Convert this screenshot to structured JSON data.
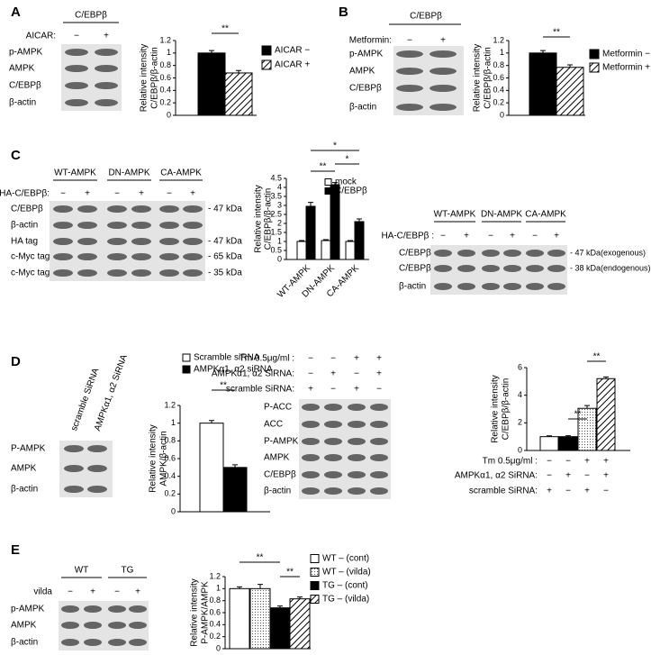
{
  "panel_labels": [
    "A",
    "B",
    "C",
    "D",
    "E"
  ],
  "blots": [
    {
      "header": "C/EBPβ",
      "conditions": [
        {
          "label": "AICAR:",
          "signs": [
            "−",
            "+"
          ]
        }
      ],
      "rows": [
        "p-AMPK",
        "AMPK",
        "C/EBPβ",
        "β-actin"
      ]
    },
    {
      "header": "C/EBPβ",
      "conditions": [
        {
          "label": "Metformin:",
          "signs": [
            "−",
            "+"
          ]
        }
      ],
      "rows": [
        "p-AMPK",
        "AMPK",
        "C/EBPβ",
        "β-actin"
      ]
    },
    {
      "groups": [
        "WT-AMPK",
        "DN-AMPK",
        "CA-AMPK"
      ],
      "conditions": [
        {
          "label": "HA-C/EBPβ:",
          "signs": [
            "−",
            "+",
            "−",
            "+",
            "−",
            "+"
          ]
        }
      ],
      "rows": [
        "C/EBPβ",
        "β-actin",
        "HA tag",
        "c-Myc tag",
        "c-Myc tag"
      ],
      "sizes": [
        "- 47 kDa",
        null,
        "- 47 kDa",
        "- 65 kDa",
        "- 35 kDa"
      ]
    },
    {
      "groups": [
        "WT-AMPK",
        "DN-AMPK",
        "CA-AMPK"
      ],
      "conditions": [
        {
          "label": "HA-C/EBPβ :",
          "signs": [
            "−",
            "+",
            "−",
            "+",
            "−",
            "+"
          ]
        }
      ],
      "rows": [
        "C/EBPβ",
        "C/EBPβ",
        "β-actin"
      ],
      "sizes": [
        "- 47 kDa(exogenous)",
        "- 38 kDa(endogenous)",
        null
      ]
    },
    {
      "lanes": [
        "scramble  SiRNA",
        "AMPKα1, α2  SiRNA"
      ],
      "rows": [
        "P-AMPK",
        "AMPK",
        "β-actin"
      ]
    },
    {
      "conditions": [
        {
          "label": "Tm 0.5μg/ml :",
          "signs": [
            "−",
            "−",
            "+",
            "+"
          ]
        },
        {
          "label": "AMPKα1, α2  SiRNA:",
          "signs": [
            "−",
            "+",
            "−",
            "+"
          ]
        },
        {
          "label": "scramble  SiRNA:",
          "signs": [
            "+",
            "−",
            "+",
            "−"
          ]
        }
      ],
      "rows": [
        "P-ACC",
        "ACC",
        "P-AMPK",
        "AMPK",
        "C/EBPβ",
        "β-actin"
      ]
    },
    {
      "groups": [
        "WT",
        "TG"
      ],
      "conditions": [
        {
          "label": "vilda",
          "signs": [
            "−",
            "+",
            "−",
            "+"
          ]
        }
      ],
      "rows": [
        "p-AMPK",
        "AMPK",
        "β-actin"
      ]
    }
  ],
  "chart_data": [
    {
      "type": "bar",
      "ylabel": [
        "Relative intensity",
        "C/EBPβ/β-actin"
      ],
      "ylim": [
        0,
        1.2
      ],
      "yticks": [
        0,
        0.2,
        0.4,
        0.6,
        0.8,
        1,
        1.2
      ],
      "series": [
        {
          "name": "AICAR −",
          "fill": "black",
          "values": [
            1.0
          ],
          "errors": [
            0.04
          ]
        },
        {
          "name": "AICAR +",
          "fill": "hatch",
          "values": [
            0.68
          ],
          "errors": [
            0.04
          ]
        }
      ],
      "significance": [
        "**"
      ]
    },
    {
      "type": "bar",
      "ylabel": [
        "Relative intensity",
        "C/EBPβ/β-actin"
      ],
      "ylim": [
        0,
        1.2
      ],
      "yticks": [
        0,
        0.2,
        0.4,
        0.6,
        0.8,
        1,
        1.2
      ],
      "series": [
        {
          "name": "Metformin −",
          "fill": "black",
          "values": [
            1.0
          ],
          "errors": [
            0.04
          ]
        },
        {
          "name": "Metformin +",
          "fill": "hatch",
          "values": [
            0.77
          ],
          "errors": [
            0.04
          ]
        }
      ],
      "significance": [
        "**"
      ]
    },
    {
      "type": "bar",
      "ylabel": [
        "Relative intensity",
        "C/EBPβ/β-actin"
      ],
      "ylim": [
        0,
        4.5
      ],
      "yticks": [
        0,
        0.5,
        1,
        1.5,
        2,
        2.5,
        3,
        3.5,
        4,
        4.5
      ],
      "categories": [
        "WT-AMPK",
        "DN-AMPK",
        "CA-AMPK"
      ],
      "series": [
        {
          "name": "mock",
          "fill": "white",
          "values": [
            1.0,
            1.05,
            1.0
          ],
          "errors": [
            0.05,
            0.05,
            0.05
          ]
        },
        {
          "name": "C/EBPβ",
          "fill": "black",
          "values": [
            2.95,
            4.15,
            2.1
          ],
          "errors": [
            0.22,
            0.12,
            0.15
          ]
        }
      ],
      "significance": [
        "**",
        "*",
        "*"
      ]
    },
    {
      "type": "bar",
      "ylabel": [
        "Relative intensity",
        "AMPK/β-actin"
      ],
      "ylim": [
        0,
        1.2
      ],
      "yticks": [
        0,
        0.2,
        0.4,
        0.6,
        0.8,
        1,
        1.2
      ],
      "series": [
        {
          "name": "Scramble siRNA",
          "fill": "white",
          "values": [
            1.0
          ],
          "errors": [
            0.03
          ]
        },
        {
          "name": "AMPKα1, α2 siRNA",
          "fill": "black",
          "values": [
            0.5
          ],
          "errors": [
            0.03
          ]
        }
      ],
      "significance": [
        "**"
      ]
    },
    {
      "type": "bar",
      "ylabel": [
        "Relative intensity",
        "C/EBPβ/β-actin"
      ],
      "ylim": [
        0,
        6
      ],
      "yticks": [
        0,
        2,
        4,
        6
      ],
      "series": [
        {
          "fill": "white",
          "values": [
            1.0
          ],
          "errors": [
            0.06
          ]
        },
        {
          "fill": "black",
          "values": [
            1.0
          ],
          "errors": [
            0.07
          ]
        },
        {
          "fill": "dots",
          "values": [
            3.05
          ],
          "errors": [
            0.2
          ]
        },
        {
          "fill": "hatch",
          "values": [
            5.2
          ],
          "errors": [
            0.12
          ]
        }
      ],
      "conditions": [
        {
          "label": "Tm 0.5μg/ml :",
          "signs": [
            "−",
            "−",
            "+",
            "+"
          ]
        },
        {
          "label": "AMPKα1, α2  SiRNA:",
          "signs": [
            "−",
            "+",
            "−",
            "+"
          ]
        },
        {
          "label": "scramble  SiRNA:",
          "signs": [
            "+",
            "−",
            "+",
            "−"
          ]
        }
      ],
      "significance": [
        "**",
        "**"
      ]
    },
    {
      "type": "bar",
      "ylabel": [
        "Relative intensity",
        "P-AMPK/AMPK"
      ],
      "ylim": [
        0,
        1.2
      ],
      "yticks": [
        0,
        0.2,
        0.4,
        0.6,
        0.8,
        1,
        1.2
      ],
      "series": [
        {
          "name": "WT – (cont)",
          "fill": "white",
          "values": [
            1.0
          ],
          "errors": [
            0.03
          ]
        },
        {
          "name": "WT – (vilda)",
          "fill": "dots",
          "values": [
            1.0
          ],
          "errors": [
            0.07
          ]
        },
        {
          "name": "TG – (cont)",
          "fill": "black",
          "values": [
            0.68
          ],
          "errors": [
            0.03
          ]
        },
        {
          "name": "TG – (vilda)",
          "fill": "hatch",
          "values": [
            0.83
          ],
          "errors": [
            0.03
          ]
        }
      ],
      "significance": [
        "**",
        "**"
      ]
    }
  ]
}
